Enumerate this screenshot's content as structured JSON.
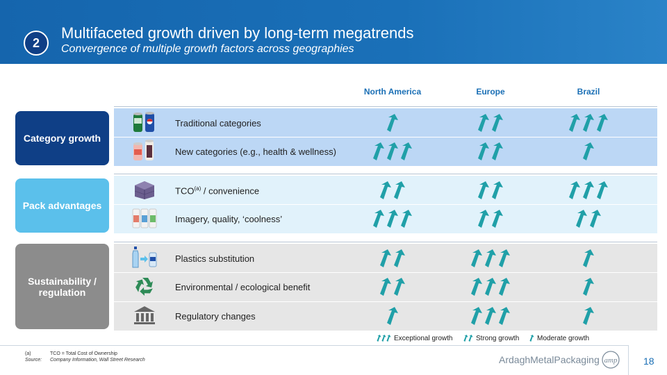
{
  "header": {
    "badge": "2",
    "title": "Multifaceted growth driven by long-term megatrends",
    "subtitle": "Convergence of multiple growth factors across geographies"
  },
  "columns": [
    "North America",
    "Europe",
    "Brazil"
  ],
  "sections": [
    {
      "label": "Category growth",
      "rows": [
        {
          "label": "Traditional categories",
          "icon": "cans-icon",
          "ratings": [
            1,
            2,
            3
          ]
        },
        {
          "label": "New categories (e.g., health & wellness)",
          "icon": "health-cans-icon",
          "ratings": [
            3,
            2,
            1
          ]
        }
      ]
    },
    {
      "label": "Pack advantages",
      "rows": [
        {
          "label": "TCO",
          "sup": "(a)",
          "suffix": " / convenience",
          "icon": "pallet-icon",
          "ratings": [
            2,
            2,
            3
          ]
        },
        {
          "label": "Imagery, quality, ‘coolness’",
          "icon": "designer-cans-icon",
          "ratings": [
            3,
            2,
            2
          ]
        }
      ]
    },
    {
      "label": "Sustainability / regulation",
      "rows": [
        {
          "label": "Plastics substitution",
          "icon": "bottle-to-can-icon",
          "ratings": [
            2,
            3,
            1
          ]
        },
        {
          "label": "Environmental / ecological benefit",
          "icon": "recycle-icon",
          "ratings": [
            2,
            3,
            1
          ]
        },
        {
          "label": "Regulatory changes",
          "icon": "government-building-icon",
          "ratings": [
            1,
            3,
            1
          ]
        }
      ]
    }
  ],
  "legend": [
    {
      "label": "Exceptional growth",
      "count": 3
    },
    {
      "label": "Strong growth",
      "count": 2
    },
    {
      "label": "Moderate growth",
      "count": 1
    }
  ],
  "footnotes": [
    {
      "key": "(a)",
      "text": "TCO = Total Cost of Ownership"
    },
    {
      "key": "Source:",
      "text": "Company Information, Wall Street Research"
    }
  ],
  "footer": {
    "logo_text": "ArdaghMetalPackaging",
    "page_number": "18"
  },
  "colors": {
    "header": "#1a6fb5",
    "category": "#0f3f86",
    "pack": "#5bc0eb",
    "sustain": "#8c8c8c",
    "arrow": "#20a0a8"
  }
}
